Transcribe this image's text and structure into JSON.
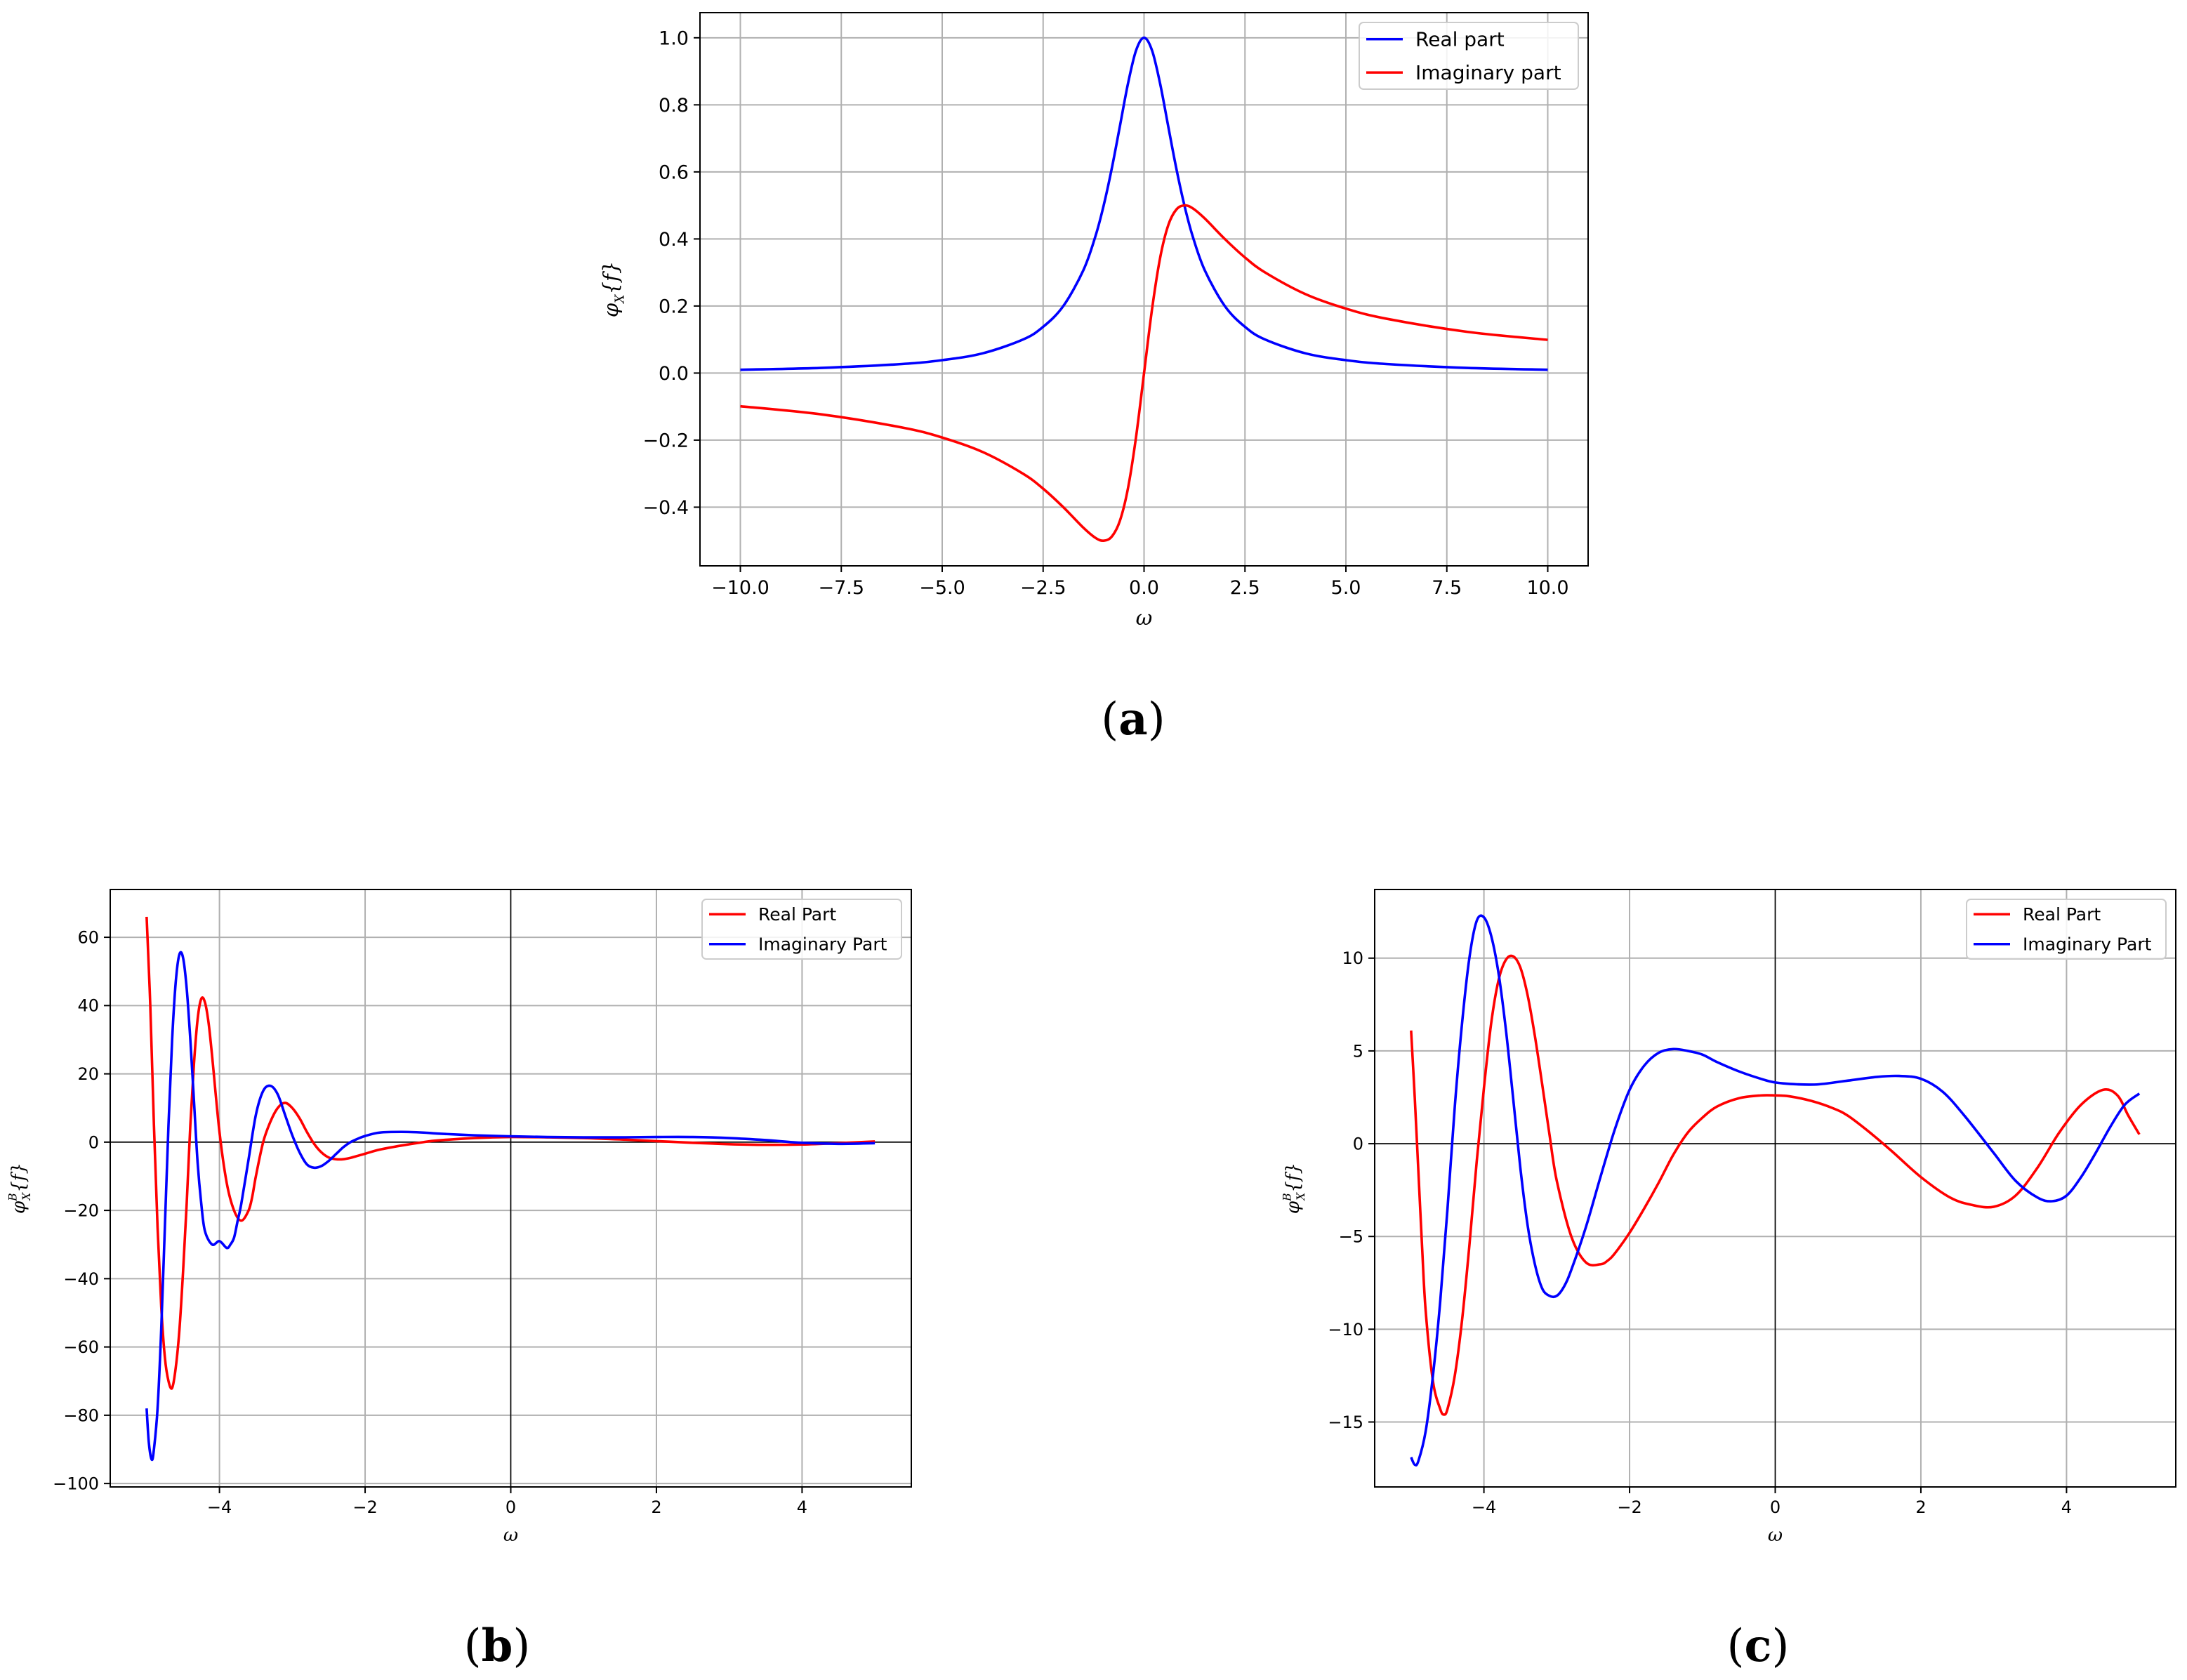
{
  "chart_data": [
    {
      "panel": "(a)",
      "type": "line",
      "xlabel": "ω",
      "ylabel": "φX{f}",
      "ylabel_sub": "X",
      "ylabel_sup": "",
      "xlim": [
        -11.0,
        11.0
      ],
      "ylim": [
        -0.575,
        1.075
      ],
      "xticks": [
        -10.0,
        -7.5,
        -5.0,
        -2.5,
        0.0,
        2.5,
        5.0,
        7.5,
        10.0
      ],
      "xtick_labels": [
        "−10.0",
        "−7.5",
        "−5.0",
        "−2.5",
        "0.0",
        "2.5",
        "5.0",
        "7.5",
        "10.0"
      ],
      "yticks": [
        -0.4,
        -0.2,
        0.0,
        0.2,
        0.4,
        0.6,
        0.8,
        1.0
      ],
      "ytick_labels": [
        "−0.4",
        "−0.2",
        "0.0",
        "0.2",
        "0.4",
        "0.6",
        "0.8",
        "1.0"
      ],
      "grid": true,
      "zero_lines": false,
      "legend_position": "top-right",
      "series": [
        {
          "name": "Real part",
          "color": "#0000ff",
          "x": [
            -10,
            -8,
            -6,
            -5,
            -4,
            -3,
            -2.5,
            -2,
            -1.5,
            -1.2,
            -1,
            -0.8,
            -0.6,
            -0.4,
            -0.2,
            0,
            0.2,
            0.4,
            0.6,
            0.8,
            1,
            1.2,
            1.5,
            2,
            2.5,
            3,
            4,
            5,
            6,
            8,
            10
          ],
          "y": [
            0.0099,
            0.0154,
            0.027,
            0.0385,
            0.0588,
            0.1,
            0.1379,
            0.2,
            0.3077,
            0.4098,
            0.5,
            0.6098,
            0.7353,
            0.8621,
            0.9615,
            1.0,
            0.9615,
            0.8621,
            0.7353,
            0.6098,
            0.5,
            0.4098,
            0.3077,
            0.2,
            0.1379,
            0.1,
            0.0588,
            0.0385,
            0.027,
            0.0154,
            0.0099
          ]
        },
        {
          "name": "Imaginary part",
          "color": "#ff0000",
          "x": [
            -10,
            -8,
            -6,
            -5,
            -4,
            -3,
            -2.5,
            -2,
            -1.5,
            -1.2,
            -1,
            -0.8,
            -0.6,
            -0.4,
            -0.2,
            0,
            0.2,
            0.4,
            0.6,
            0.8,
            1,
            1.2,
            1.5,
            2,
            2.5,
            3,
            4,
            5,
            6,
            8,
            10
          ],
          "y": [
            -0.099,
            -0.1231,
            -0.1622,
            -0.1923,
            -0.2353,
            -0.3,
            -0.3448,
            -0.4,
            -0.4615,
            -0.4918,
            -0.5,
            -0.4878,
            -0.4412,
            -0.3448,
            -0.1923,
            0.0,
            0.1923,
            0.3448,
            0.4412,
            0.4878,
            0.5,
            0.4918,
            0.4615,
            0.4,
            0.3448,
            0.3,
            0.2353,
            0.1923,
            0.1622,
            0.1231,
            0.099
          ]
        }
      ]
    },
    {
      "panel": "(b)",
      "type": "line",
      "xlabel": "ω",
      "ylabel": "φBX{f}",
      "ylabel_sub": "X",
      "ylabel_sup": "B",
      "xlim": [
        -5.5,
        5.5
      ],
      "ylim": [
        -101,
        74
      ],
      "xticks": [
        -4,
        -2,
        0,
        2,
        4
      ],
      "xtick_labels": [
        "−4",
        "−2",
        "0",
        "2",
        "4"
      ],
      "yticks": [
        -100,
        -80,
        -60,
        -40,
        -20,
        0,
        20,
        40,
        60
      ],
      "ytick_labels": [
        "−100",
        "−80",
        "−60",
        "−40",
        "−20",
        "0",
        "20",
        "40",
        "60"
      ],
      "grid": true,
      "zero_lines": true,
      "legend_position": "top-right",
      "series": [
        {
          "name": "Real Part",
          "color": "#ff0000",
          "x": [
            -5.0,
            -4.95,
            -4.9,
            -4.85,
            -4.8,
            -4.75,
            -4.7,
            -4.65,
            -4.6,
            -4.55,
            -4.5,
            -4.45,
            -4.4,
            -4.35,
            -4.3,
            -4.25,
            -4.2,
            -4.15,
            -4.1,
            -4.0,
            -3.9,
            -3.8,
            -3.7,
            -3.6,
            -3.55,
            -3.5,
            -3.4,
            -3.3,
            -3.2,
            -3.1,
            -3.0,
            -2.9,
            -2.8,
            -2.7,
            -2.6,
            -2.5,
            -2.4,
            -2.3,
            -2.2,
            -2.1,
            -2.0,
            -1.8,
            -1.5,
            -1.2,
            -1.0,
            -0.5,
            0.0,
            0.5,
            1.0,
            1.5,
            2.0,
            2.5,
            3.0,
            3.5,
            4.0,
            4.5,
            5.0
          ],
          "y": [
            66,
            40,
            5,
            -25,
            -48,
            -63,
            -70,
            -72,
            -66,
            -55,
            -38,
            -18,
            5,
            23,
            36,
            42,
            41,
            35,
            25,
            3,
            -12,
            -20,
            -23,
            -20,
            -16,
            -10,
            0,
            6,
            10,
            11.5,
            10,
            7,
            3,
            -0.5,
            -3,
            -4.5,
            -5,
            -5,
            -4.6,
            -4,
            -3.4,
            -2.2,
            -1,
            0,
            0.5,
            1.2,
            1.5,
            1.4,
            1.2,
            0.8,
            0.3,
            -0.2,
            -0.6,
            -0.8,
            -0.7,
            -0.3,
            0.2
          ]
        },
        {
          "name": "Imaginary Part",
          "color": "#0000ff",
          "x": [
            -5.0,
            -4.97,
            -4.93,
            -4.9,
            -4.85,
            -4.8,
            -4.75,
            -4.7,
            -4.65,
            -4.6,
            -4.55,
            -4.5,
            -4.45,
            -4.4,
            -4.35,
            -4.3,
            -4.25,
            -4.2,
            -4.1,
            -4.0,
            -3.9,
            -3.85,
            -3.8,
            -3.75,
            -3.7,
            -3.6,
            -3.5,
            -3.4,
            -3.3,
            -3.2,
            -3.1,
            -3.0,
            -2.9,
            -2.8,
            -2.7,
            -2.6,
            -2.5,
            -2.4,
            -2.3,
            -2.2,
            -2.1,
            -2.0,
            -1.8,
            -1.5,
            -1.2,
            -1.0,
            -0.5,
            0.0,
            0.5,
            1.0,
            1.5,
            2.0,
            2.5,
            3.0,
            3.5,
            4.0,
            4.5,
            5.0
          ],
          "y": [
            -78,
            -88,
            -93,
            -90,
            -78,
            -55,
            -25,
            5,
            30,
            47,
            55,
            54,
            45,
            30,
            12,
            -6,
            -18,
            -26,
            -30,
            -29,
            -31,
            -30,
            -28,
            -23,
            -18,
            -5,
            8,
            15,
            16.5,
            14,
            8,
            2,
            -3,
            -6.5,
            -7.5,
            -7,
            -5.5,
            -3.5,
            -1.5,
            0,
            1,
            1.8,
            2.8,
            3,
            2.8,
            2.5,
            2,
            1.7,
            1.5,
            1.4,
            1.4,
            1.5,
            1.5,
            1.2,
            0.6,
            -0.2,
            -0.5,
            -0.3
          ]
        }
      ]
    },
    {
      "panel": "(c)",
      "type": "line",
      "xlabel": "ω",
      "ylabel": "φBX{f}",
      "ylabel_sub": "X",
      "ylabel_sup": "B",
      "xlim": [
        -5.5,
        5.5
      ],
      "ylim": [
        -18.5,
        13.7
      ],
      "xticks": [
        -4,
        -2,
        0,
        2,
        4
      ],
      "xtick_labels": [
        "−4",
        "−2",
        "0",
        "2",
        "4"
      ],
      "yticks": [
        -15,
        -10,
        -5,
        0,
        5,
        10
      ],
      "ytick_labels": [
        "−15",
        "−10",
        "−5",
        "0",
        "5",
        "10"
      ],
      "grid": true,
      "zero_lines": true,
      "legend_position": "top-right",
      "series": [
        {
          "name": "Real Part",
          "color": "#ff0000",
          "x": [
            -5.0,
            -4.95,
            -4.9,
            -4.85,
            -4.8,
            -4.7,
            -4.6,
            -4.55,
            -4.5,
            -4.4,
            -4.3,
            -4.2,
            -4.1,
            -4.0,
            -3.9,
            -3.8,
            -3.7,
            -3.6,
            -3.5,
            -3.4,
            -3.3,
            -3.2,
            -3.1,
            -3.0,
            -2.8,
            -2.6,
            -2.4,
            -2.3,
            -2.2,
            -2.0,
            -1.8,
            -1.6,
            -1.4,
            -1.2,
            -1.0,
            -0.8,
            -0.5,
            -0.2,
            0.0,
            0.2,
            0.5,
            0.8,
            1.0,
            1.3,
            1.6,
            2.0,
            2.4,
            2.7,
            3.0,
            3.3,
            3.6,
            3.9,
            4.2,
            4.5,
            4.7,
            4.85,
            5.0
          ],
          "y": [
            6.1,
            2.5,
            -1.5,
            -5.5,
            -9,
            -12.8,
            -14.3,
            -14.6,
            -14.3,
            -12.5,
            -9.5,
            -5.5,
            -1,
            3,
            6.5,
            8.8,
            9.9,
            10.1,
            9.5,
            8,
            5.8,
            3.2,
            0.5,
            -2,
            -5,
            -6.4,
            -6.5,
            -6.3,
            -5.9,
            -4.8,
            -3.5,
            -2.1,
            -0.6,
            0.6,
            1.4,
            2.0,
            2.45,
            2.6,
            2.6,
            2.55,
            2.3,
            1.9,
            1.5,
            0.6,
            -0.4,
            -1.8,
            -2.9,
            -3.3,
            -3.4,
            -2.8,
            -1.3,
            0.6,
            2.1,
            2.9,
            2.6,
            1.5,
            0.5
          ]
        },
        {
          "name": "Imaginary Part",
          "color": "#0000ff",
          "x": [
            -5.0,
            -4.95,
            -4.9,
            -4.8,
            -4.7,
            -4.6,
            -4.5,
            -4.4,
            -4.3,
            -4.2,
            -4.1,
            -4.0,
            -3.9,
            -3.8,
            -3.7,
            -3.6,
            -3.5,
            -3.4,
            -3.3,
            -3.2,
            -3.1,
            -3.0,
            -2.9,
            -2.8,
            -2.6,
            -2.4,
            -2.2,
            -2.0,
            -1.8,
            -1.6,
            -1.4,
            -1.2,
            -1.0,
            -0.8,
            -0.5,
            -0.2,
            0.0,
            0.3,
            0.6,
            1.0,
            1.4,
            1.7,
            2.0,
            2.3,
            2.6,
            3.0,
            3.3,
            3.6,
            3.8,
            4.0,
            4.2,
            4.4,
            4.6,
            4.8,
            5.0
          ],
          "y": [
            -16.9,
            -17.3,
            -17.1,
            -15.5,
            -12.5,
            -8.5,
            -3.5,
            2,
            6.5,
            10,
            12,
            12.2,
            11.2,
            9.2,
            6.2,
            2.5,
            -1.3,
            -4.4,
            -6.5,
            -7.8,
            -8.2,
            -8.2,
            -7.7,
            -6.8,
            -4.5,
            -1.8,
            0.8,
            2.9,
            4.2,
            4.9,
            5.1,
            5.0,
            4.8,
            4.4,
            3.9,
            3.5,
            3.3,
            3.2,
            3.2,
            3.4,
            3.6,
            3.65,
            3.5,
            2.8,
            1.5,
            -0.5,
            -2.0,
            -2.9,
            -3.1,
            -2.8,
            -1.8,
            -0.5,
            0.9,
            2.1,
            2.7
          ]
        }
      ]
    }
  ]
}
